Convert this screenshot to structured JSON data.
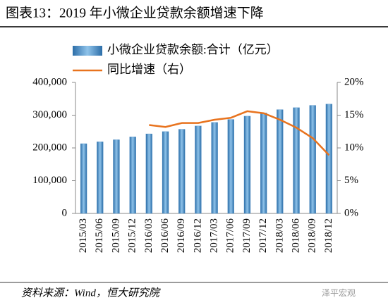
{
  "chart_data": {
    "type": "bar",
    "title": "图表13：2019 年小微企业贷款余额增速下降",
    "source": "资料来源：Wind，恒大研究院",
    "watermark": "泽平宏观",
    "categories": [
      "2015/03",
      "2015/06",
      "2015/09",
      "2015/12",
      "2016/03",
      "2016/06",
      "2016/09",
      "2016/12",
      "2017/03",
      "2017/06",
      "2017/09",
      "2017/12",
      "2018/03",
      "2018/06",
      "2018/09",
      "2018/12"
    ],
    "series": [
      {
        "name": "小微企业贷款余额:合计（亿元）",
        "type": "bar",
        "color": "#4a8cc6",
        "values": [
          213000,
          219000,
          225000,
          234000,
          243000,
          250000,
          257000,
          267000,
          278000,
          287000,
          297000,
          307000,
          317000,
          323000,
          330000,
          334000
        ]
      },
      {
        "name": "同比增速（右）",
        "type": "line",
        "axis": "y2",
        "color": "#e8731e",
        "values": [
          null,
          null,
          null,
          null,
          13.5,
          13.2,
          13.8,
          13.8,
          14.3,
          14.6,
          15.6,
          15.3,
          14.3,
          13.1,
          11.5,
          8.9
        ]
      }
    ],
    "ylim": [
      0,
      400000
    ],
    "yticks": [
      0,
      {
        "value": 100000,
        "label": "100,000"
      },
      {
        "value": 200000,
        "label": "200,000"
      },
      {
        "value": 300000,
        "label": "300,000"
      },
      {
        "value": 400000,
        "label": "400,000"
      }
    ],
    "y2lim": [
      0,
      20
    ],
    "y2ticks": [
      {
        "value": 0,
        "label": "0%"
      },
      {
        "value": 5,
        "label": "5%"
      },
      {
        "value": 10,
        "label": "10%"
      },
      {
        "value": 15,
        "label": "15%"
      },
      {
        "value": 20,
        "label": "20%"
      }
    ],
    "grid": false
  }
}
